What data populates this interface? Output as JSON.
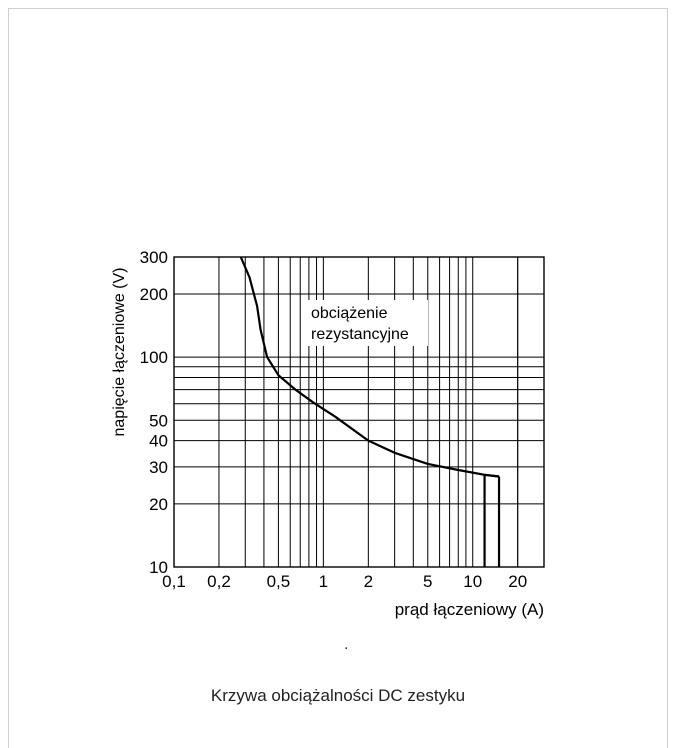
{
  "chart_data": {
    "type": "line",
    "x_scale": "log",
    "y_scale": "log",
    "xlim": [
      0.1,
      30
    ],
    "ylim": [
      10,
      300
    ],
    "grid": true,
    "xlabel": "prąd łączeniowy (A)",
    "ylabel": "napięcie łączeniowe (V)",
    "x_ticks": [
      0.1,
      0.2,
      0.5,
      1,
      2,
      5,
      10,
      20
    ],
    "x_tick_labels": [
      "0,1",
      "0,2",
      "0,5",
      "1",
      "2",
      "5",
      "10",
      "20"
    ],
    "y_ticks": [
      10,
      20,
      30,
      40,
      50,
      100,
      200,
      300
    ],
    "y_tick_labels": [
      "10",
      "20",
      "30",
      "40",
      "50",
      "100",
      "200",
      "300"
    ],
    "annotation": [
      "obciążenie",
      "rezystancyjne"
    ],
    "series": [
      {
        "x": [
          0.28,
          0.32,
          0.36,
          0.38,
          0.42,
          0.5,
          0.65,
          0.85,
          1.2,
          2,
          3,
          5,
          8,
          12,
          15
        ],
        "y": [
          300,
          240,
          175,
          135,
          100,
          82,
          70,
          61,
          52,
          40,
          35,
          31,
          29,
          27.5,
          27
        ]
      }
    ],
    "cutoffs": [
      {
        "x": 12,
        "y_top": 27.5,
        "y_bottom": 10
      },
      {
        "x": 15,
        "y_top": 27,
        "y_bottom": 10
      }
    ]
  },
  "caption": "Krzywa obciążalności DC zestyku",
  "note": "."
}
